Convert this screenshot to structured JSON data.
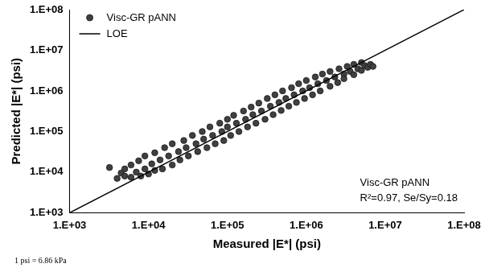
{
  "chart_data": {
    "type": "scatter",
    "x_label": "Measured |E*| (psi)",
    "y_label": "Predicted |E*| (psi)",
    "log": true,
    "grid": false,
    "legend": "upper left",
    "xlim": [
      1000,
      100000000
    ],
    "ylim": [
      1000,
      100000000
    ],
    "xticks": [
      {
        "value": 1000,
        "label": "1.E+03"
      },
      {
        "value": 10000,
        "label": "1.E+04"
      },
      {
        "value": 100000,
        "label": "1.E+05"
      },
      {
        "value": 1000000,
        "label": "1.E+06"
      },
      {
        "value": 10000000,
        "label": "1.E+07"
      },
      {
        "value": 100000000,
        "label": "1.E+08"
      }
    ],
    "yticks": [
      {
        "value": 1000,
        "label": "1.E+03"
      },
      {
        "value": 10000,
        "label": "1.E+04"
      },
      {
        "value": 100000,
        "label": "1.E+05"
      },
      {
        "value": 1000000,
        "label": "1.E+06"
      },
      {
        "value": 10000000,
        "label": "1.E+07"
      },
      {
        "value": 100000000,
        "label": "1.E+08"
      }
    ],
    "series": [
      {
        "name": "Visc-GR pANN",
        "type": "scatter",
        "color": "#404040",
        "marker": "circle",
        "x": [
          3200,
          4000,
          4500,
          5000,
          5000,
          6000,
          6000,
          7000,
          7500,
          8000,
          9000,
          9000,
          10000,
          11000,
          12000,
          12000,
          14000,
          15000,
          16000,
          18000,
          20000,
          20000,
          24000,
          25000,
          28000,
          30000,
          32000,
          36000,
          40000,
          42000,
          48000,
          50000,
          55000,
          60000,
          65000,
          70000,
          80000,
          85000,
          90000,
          100000,
          100000,
          110000,
          120000,
          130000,
          140000,
          160000,
          170000,
          180000,
          200000,
          210000,
          230000,
          250000,
          270000,
          300000,
          320000,
          350000,
          380000,
          400000,
          450000,
          480000,
          500000,
          550000,
          600000,
          650000,
          700000,
          750000,
          800000,
          900000,
          950000,
          1000000,
          1100000,
          1200000,
          1300000,
          1400000,
          1500000,
          1600000,
          1800000,
          2000000,
          2000000,
          2300000,
          2500000,
          2600000,
          3000000,
          3000000,
          3300000,
          3600000,
          4000000,
          4000000,
          4500000,
          5000000,
          5000000,
          5500000,
          6000000,
          6500000,
          7000000
        ],
        "values": [
          13000,
          7000,
          9500,
          12000,
          8000,
          7500,
          15000,
          10000,
          19000,
          8000,
          12000,
          25000,
          9000,
          16000,
          30000,
          11000,
          20000,
          12000,
          40000,
          25000,
          15000,
          50000,
          32000,
          20000,
          60000,
          40000,
          25000,
          80000,
          50000,
          32000,
          100000,
          65000,
          40000,
          130000,
          80000,
          50000,
          160000,
          100000,
          60000,
          200000,
          130000,
          80000,
          250000,
          160000,
          100000,
          320000,
          200000,
          130000,
          400000,
          260000,
          160000,
          500000,
          320000,
          200000,
          650000,
          420000,
          260000,
          800000,
          520000,
          330000,
          1000000,
          650000,
          420000,
          1200000,
          800000,
          520000,
          1500000,
          1000000,
          650000,
          1800000,
          1200000,
          800000,
          2200000,
          1500000,
          1000000,
          2600000,
          1800000,
          1300000,
          3000000,
          2200000,
          1600000,
          3500000,
          2600000,
          2000000,
          4000000,
          3000000,
          2500000,
          4500000,
          3500000,
          5000000,
          3200000,
          4200000,
          3800000,
          4500000,
          4000000
        ]
      },
      {
        "name": "LOE",
        "type": "line",
        "color": "#000000",
        "line_style": "solid",
        "x": [
          1000,
          100000000
        ],
        "values": [
          1000,
          100000000
        ]
      }
    ],
    "annotations": [
      "Visc-GR pANN",
      "R²=0.97, Se/Sy=0.18"
    ],
    "footnote": "1 psi = 6.86 kPa"
  }
}
